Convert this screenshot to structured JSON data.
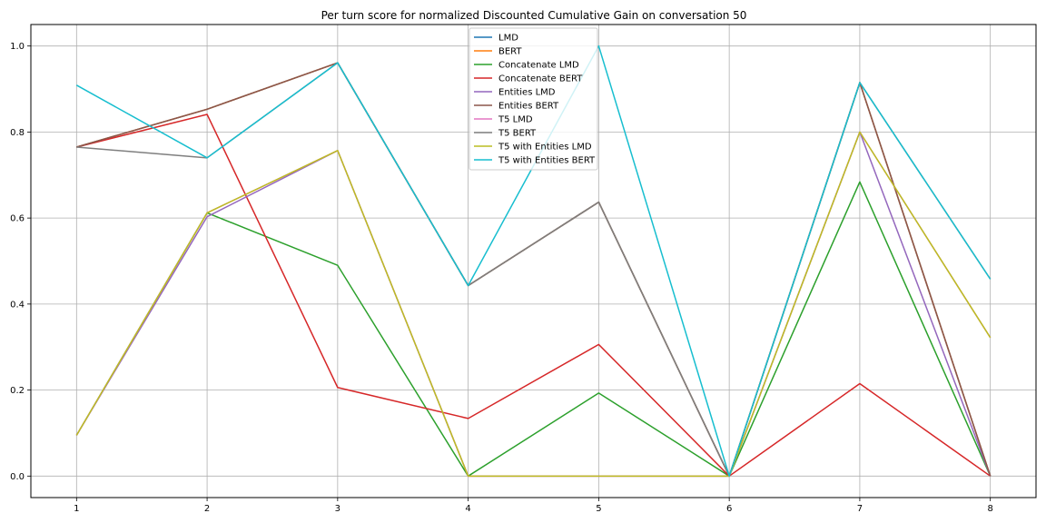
{
  "chart_data": {
    "type": "line",
    "title": "Per turn score for normalized Discounted Cumulative Gain on conversation 50",
    "xlabel": "",
    "ylabel": "",
    "x": [
      1,
      2,
      3,
      4,
      5,
      6,
      7,
      8
    ],
    "xlim": [
      0.65,
      8.35
    ],
    "ylim": [
      -0.05,
      1.05
    ],
    "xticks": [
      "1",
      "2",
      "3",
      "4",
      "5",
      "6",
      "7",
      "8"
    ],
    "yticks": [
      "0.0",
      "0.2",
      "0.4",
      "0.6",
      "0.8",
      "1.0"
    ],
    "ytick_values": [
      0,
      0.2,
      0.4,
      0.6,
      0.8,
      1.0
    ],
    "grid": true,
    "legend_position": "top-center",
    "series": [
      {
        "name": "LMD",
        "color": "#1f77b4",
        "values": [
          0.765,
          0.853,
          0.961,
          0.443,
          0.637,
          0.0,
          0.915,
          0.0
        ]
      },
      {
        "name": "BERT",
        "color": "#ff7f0e",
        "values": [
          0.765,
          0.853,
          0.961,
          0.443,
          0.637,
          0.0,
          0.915,
          0.0
        ]
      },
      {
        "name": "Concatenate LMD",
        "color": "#2ca02c",
        "values": [
          0.095,
          0.612,
          0.49,
          0.0,
          0.193,
          0.0,
          0.684,
          0.0
        ]
      },
      {
        "name": "Concatenate BERT",
        "color": "#d62728",
        "values": [
          0.765,
          0.841,
          0.206,
          0.134,
          0.306,
          0.0,
          0.215,
          0.0
        ]
      },
      {
        "name": "Entities LMD",
        "color": "#9467bd",
        "values": [
          0.095,
          0.603,
          0.757,
          0.0,
          0.0,
          0.0,
          0.8,
          0.0
        ]
      },
      {
        "name": "Entities BERT",
        "color": "#8c564b",
        "values": [
          0.765,
          0.853,
          0.961,
          0.443,
          0.637,
          0.0,
          0.915,
          0.0
        ]
      },
      {
        "name": "T5 LMD",
        "color": "#e377c2",
        "values": [
          0.095,
          0.612,
          0.757,
          0.0,
          0.0,
          0.0,
          0.8,
          0.322
        ]
      },
      {
        "name": "T5 BERT",
        "color": "#7f7f7f",
        "values": [
          0.765,
          0.74,
          0.961,
          0.443,
          0.637,
          0.0,
          0.915,
          0.458
        ]
      },
      {
        "name": "T5 with Entities LMD",
        "color": "#bcbd22",
        "values": [
          0.095,
          0.612,
          0.757,
          0.0,
          0.0,
          0.0,
          0.8,
          0.322
        ]
      },
      {
        "name": "T5 with Entities BERT",
        "color": "#17becf",
        "values": [
          0.909,
          0.74,
          0.961,
          0.443,
          1.0,
          0.0,
          0.915,
          0.458
        ]
      }
    ]
  }
}
